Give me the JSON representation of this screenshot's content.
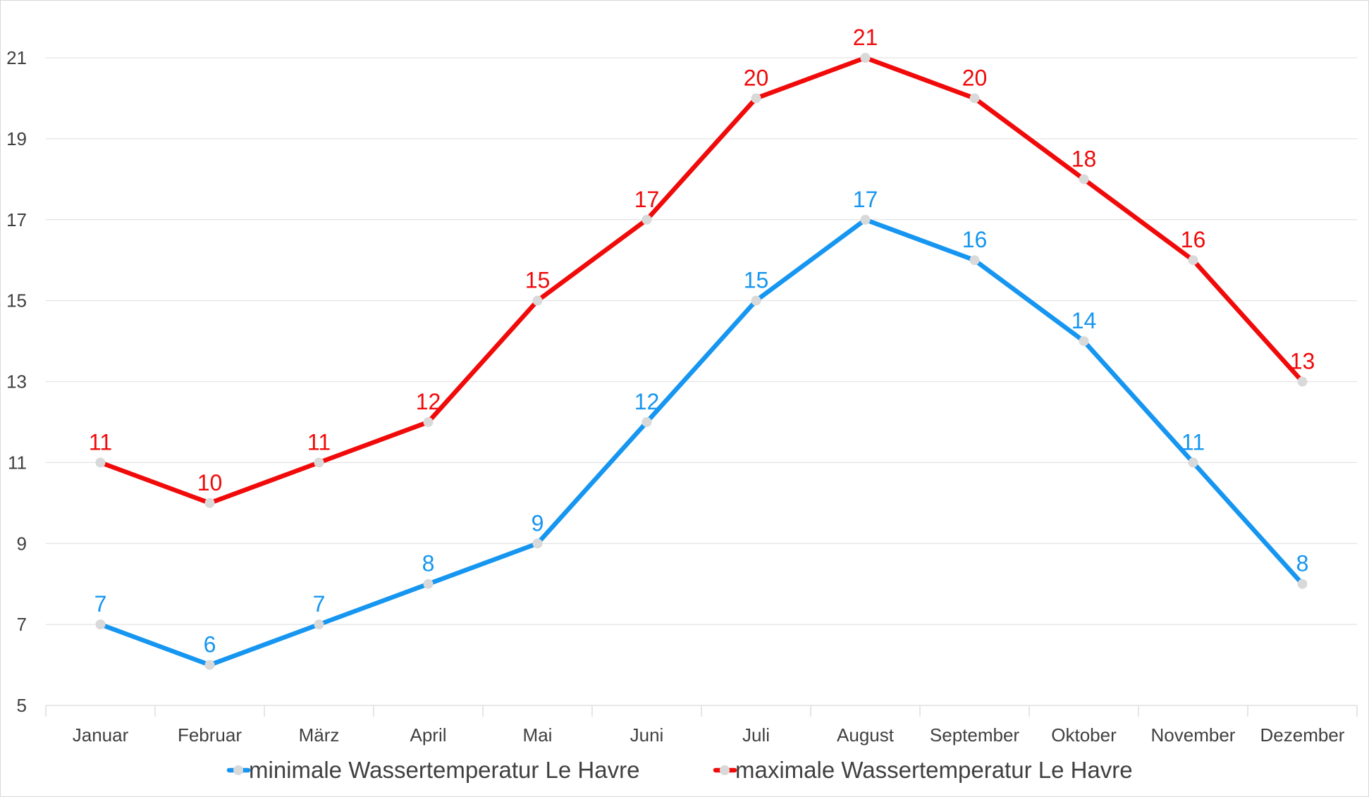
{
  "chart_data": {
    "type": "line",
    "title": "",
    "xlabel": "",
    "ylabel": "",
    "categories": [
      "Januar",
      "Februar",
      "März",
      "April",
      "Mai",
      "Juni",
      "Juli",
      "August",
      "September",
      "Oktober",
      "November",
      "Dezember"
    ],
    "ylim": [
      5,
      21
    ],
    "yticks": [
      5,
      7,
      9,
      11,
      13,
      15,
      17,
      19,
      21
    ],
    "grid": true,
    "legend_position": "bottom",
    "data_labels": true,
    "marker_color": "#d9d9d9",
    "series": [
      {
        "name": "minimale Wassertemperatur Le Havre",
        "color": "#1696F0",
        "values": [
          7,
          6,
          7,
          8,
          9,
          12,
          15,
          17,
          16,
          14,
          11,
          8
        ]
      },
      {
        "name": "maximale Wassertemperatur Le Havre",
        "color": "#F00A0A",
        "values": [
          11,
          10,
          11,
          12,
          15,
          17,
          20,
          21,
          20,
          18,
          16,
          13
        ]
      }
    ]
  }
}
